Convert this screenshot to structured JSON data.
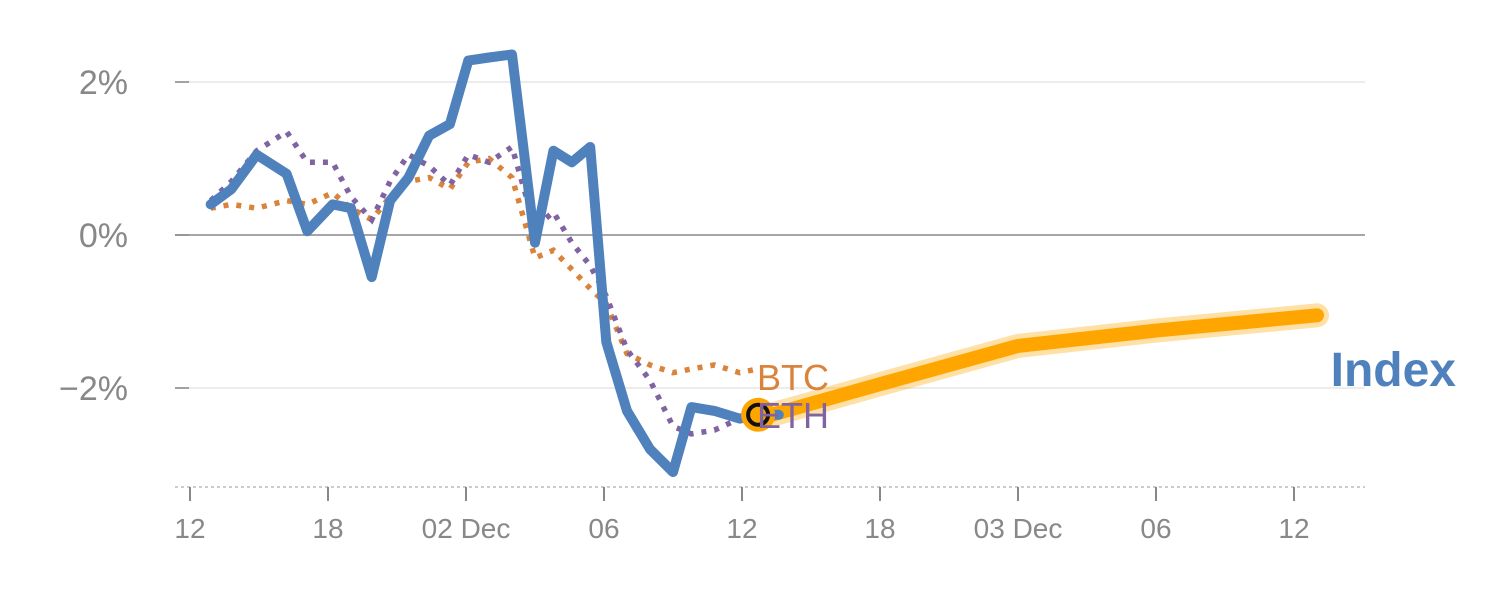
{
  "chart_data": {
    "type": "line",
    "title": "",
    "xlabel": "",
    "ylabel": "",
    "ylim": [
      -3.3,
      2.8
    ],
    "y_unit": "%",
    "grid": true,
    "x_ticks": [
      {
        "x": 0,
        "label": "12"
      },
      {
        "x": 6,
        "label": "18"
      },
      {
        "x": 12,
        "label": "02 Dec"
      },
      {
        "x": 18,
        "label": "06"
      },
      {
        "x": 24,
        "label": "12"
      },
      {
        "x": 30,
        "label": "18"
      },
      {
        "x": 36,
        "label": "03 Dec"
      },
      {
        "x": 42,
        "label": "06"
      },
      {
        "x": 48,
        "label": "12"
      }
    ],
    "y_ticks": [
      {
        "y": 2,
        "label": "2%"
      },
      {
        "y": 0,
        "label": "0%"
      },
      {
        "y": -2,
        "label": "−2%"
      }
    ],
    "series": [
      {
        "name": "Index",
        "color": "#4f81bd",
        "style": "solid",
        "x": [
          0.9,
          1.8,
          2.9,
          4.2,
          5.1,
          6.2,
          7.0,
          7.9,
          8.7,
          9.5,
          10.4,
          11.3,
          12.1,
          13.0,
          14.0,
          15.0,
          15.8,
          16.6,
          17.4,
          18.1,
          19.0,
          20.0,
          21.0,
          21.8,
          22.8,
          23.9,
          24.7,
          25.6
        ],
        "y": [
          0.4,
          0.6,
          1.05,
          0.8,
          0.05,
          0.4,
          0.35,
          -0.55,
          0.45,
          0.75,
          1.3,
          1.45,
          2.28,
          2.32,
          2.36,
          -0.1,
          1.1,
          0.95,
          1.15,
          -1.4,
          -2.3,
          -2.8,
          -3.1,
          -2.25,
          -2.3,
          -2.4,
          -2.35,
          -2.35
        ]
      },
      {
        "name": "BTC",
        "color": "#d9833b",
        "style": "dotted",
        "x": [
          0.9,
          1.8,
          2.9,
          4.2,
          5.1,
          6.2,
          7.0,
          7.9,
          8.7,
          9.5,
          10.4,
          11.3,
          12.1,
          13.0,
          14.0,
          15.0,
          15.8,
          16.6,
          17.4,
          18.1,
          19.0,
          20.0,
          21.0,
          21.8,
          22.8,
          23.9,
          24.7
        ],
        "y": [
          0.35,
          0.4,
          0.35,
          0.45,
          0.4,
          0.55,
          0.35,
          0.2,
          0.5,
          0.7,
          0.75,
          0.6,
          0.95,
          1.0,
          0.75,
          -0.3,
          -0.2,
          -0.45,
          -0.7,
          -0.9,
          -1.55,
          -1.7,
          -1.8,
          -1.75,
          -1.7,
          -1.8,
          -1.75
        ]
      },
      {
        "name": "ETH",
        "color": "#8064a2",
        "style": "dotted",
        "x": [
          0.9,
          1.8,
          2.9,
          4.2,
          5.1,
          6.2,
          7.0,
          7.9,
          8.7,
          9.5,
          10.4,
          11.3,
          12.1,
          13.0,
          14.0,
          15.0,
          15.8,
          16.6,
          17.4,
          18.1,
          19.0,
          20.0,
          21.0,
          21.8,
          22.8,
          23.9
        ],
        "y": [
          0.45,
          0.7,
          1.1,
          1.35,
          0.95,
          0.95,
          0.5,
          0.2,
          0.7,
          1.05,
          0.9,
          0.65,
          1.05,
          0.95,
          1.15,
          0.1,
          0.3,
          -0.1,
          -0.4,
          -0.8,
          -1.5,
          -1.9,
          -2.5,
          -2.6,
          -2.55,
          -2.4
        ]
      },
      {
        "name": "",
        "color": "#ffa500",
        "style": "forecast-band",
        "x": [
          24.7,
          30,
          36,
          42,
          49
        ],
        "y": [
          -2.4,
          -1.95,
          -1.45,
          -1.25,
          -1.05
        ]
      }
    ],
    "series_labels": [
      {
        "text": "BTC",
        "color": "#d9833b"
      },
      {
        "text": "ETH",
        "color": "#8064a2"
      },
      {
        "text": "Index",
        "color": "#4f81bd"
      }
    ],
    "marker": {
      "x": 24.7,
      "y": -2.35,
      "color": "#ffa500"
    }
  }
}
